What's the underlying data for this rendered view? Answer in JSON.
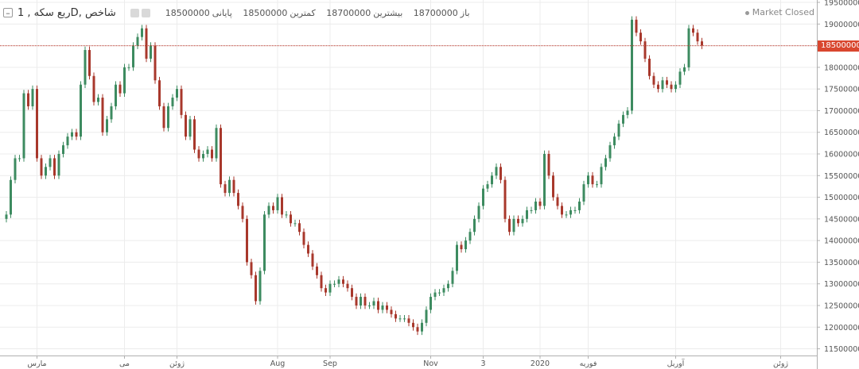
{
  "legend": {
    "title": "شاخص ,Dربع سکه , 1",
    "collapse_glyph": "–",
    "open_label": "باز",
    "open_value": "18700000",
    "high_label": "بیشترین",
    "high_value": "18700000",
    "low_label": "کمترین",
    "low_value": "18500000",
    "close_label": "پایانی",
    "close_value": "18500000"
  },
  "status": {
    "market": "Market Closed"
  },
  "price_tag": {
    "value": "18500000",
    "color": "#d9472f"
  },
  "colors": {
    "up": "#3d8b60",
    "down": "#a8382c",
    "grid": "#ececec",
    "last_line": "#c0392b"
  },
  "chart_data": {
    "type": "candlestick",
    "ylim": [
      11400000,
      19500000
    ],
    "y_ticks": [
      11500000,
      12000000,
      12500000,
      13000000,
      13500000,
      14000000,
      14500000,
      15000000,
      15500000,
      16000000,
      16500000,
      17000000,
      17500000,
      18000000,
      18500000,
      19000000,
      19500000
    ],
    "y_tick_labels": [
      "11500000",
      "12000000",
      "12500000",
      "13000000",
      "13500000",
      "14000000",
      "14500000",
      "15000000",
      "15500000",
      "16000000",
      "16500000",
      "17000000",
      "17500000",
      "18000000",
      "18500000",
      "19000000",
      "19500000"
    ],
    "x_count": 160,
    "x_ticks": [
      {
        "i": 7,
        "label": "مارس"
      },
      {
        "i": 27,
        "label": "می"
      },
      {
        "i": 39,
        "label": "ژوئن"
      },
      {
        "i": 62,
        "label": "Aug"
      },
      {
        "i": 74,
        "label": "Sep"
      },
      {
        "i": 97,
        "label": "Nov"
      },
      {
        "i": 109,
        "label": "3"
      },
      {
        "i": 122,
        "label": "2020"
      },
      {
        "i": 133,
        "label": "فوریه"
      },
      {
        "i": 153,
        "label": "آوریل"
      },
      {
        "i": 177,
        "label": "ژوئن"
      }
    ],
    "last_close": 18500000,
    "closes": [
      14600000,
      15400000,
      15900000,
      15900000,
      17400000,
      17100000,
      17500000,
      15900000,
      15500000,
      15700000,
      15900000,
      15500000,
      16000000,
      16200000,
      16400000,
      16500000,
      16400000,
      17600000,
      18400000,
      17800000,
      17200000,
      17300000,
      16500000,
      16800000,
      17100000,
      17600000,
      17400000,
      18000000,
      18000000,
      18500000,
      18700000,
      18900000,
      18200000,
      18500000,
      17700000,
      17100000,
      16600000,
      17100000,
      17300000,
      17500000,
      16900000,
      16400000,
      16800000,
      16100000,
      15900000,
      16000000,
      16100000,
      15900000,
      16600000,
      15300000,
      15100000,
      15400000,
      15100000,
      14800000,
      14500000,
      13500000,
      13200000,
      12600000,
      13300000,
      14600000,
      14800000,
      14700000,
      15000000,
      14600000,
      14600000,
      14400000,
      14400000,
      14200000,
      13900000,
      13700000,
      13400000,
      13200000,
      12900000,
      12800000,
      13000000,
      13000000,
      13100000,
      13000000,
      12900000,
      12700000,
      12500000,
      12700000,
      12500000,
      12500000,
      12600000,
      12400000,
      12500000,
      12400000,
      12300000,
      12200000,
      12200000,
      12200000,
      12100000,
      12000000,
      11900000,
      12100000,
      12400000,
      12700000,
      12800000,
      12800000,
      12900000,
      13000000,
      13300000,
      13900000,
      13800000,
      14000000,
      14200000,
      14500000,
      14800000,
      15200000,
      15300000,
      15500000,
      15700000,
      15400000,
      14500000,
      14200000,
      14500000,
      14400000,
      14500000,
      14700000,
      14700000,
      14900000,
      14800000,
      16000000,
      15500000,
      15000000,
      14800000,
      14600000,
      14600000,
      14700000,
      14700000,
      14900000,
      15300000,
      15500000,
      15300000,
      15300000,
      15700000,
      15900000,
      16200000,
      16400000,
      16700000,
      16900000,
      17000000,
      19100000,
      18800000,
      18600000,
      18200000,
      17800000,
      17600000,
      17500000,
      17700000,
      17600000,
      17500000,
      17600000,
      17900000,
      18000000,
      18900000,
      18800000,
      18600000,
      18500000
    ]
  }
}
